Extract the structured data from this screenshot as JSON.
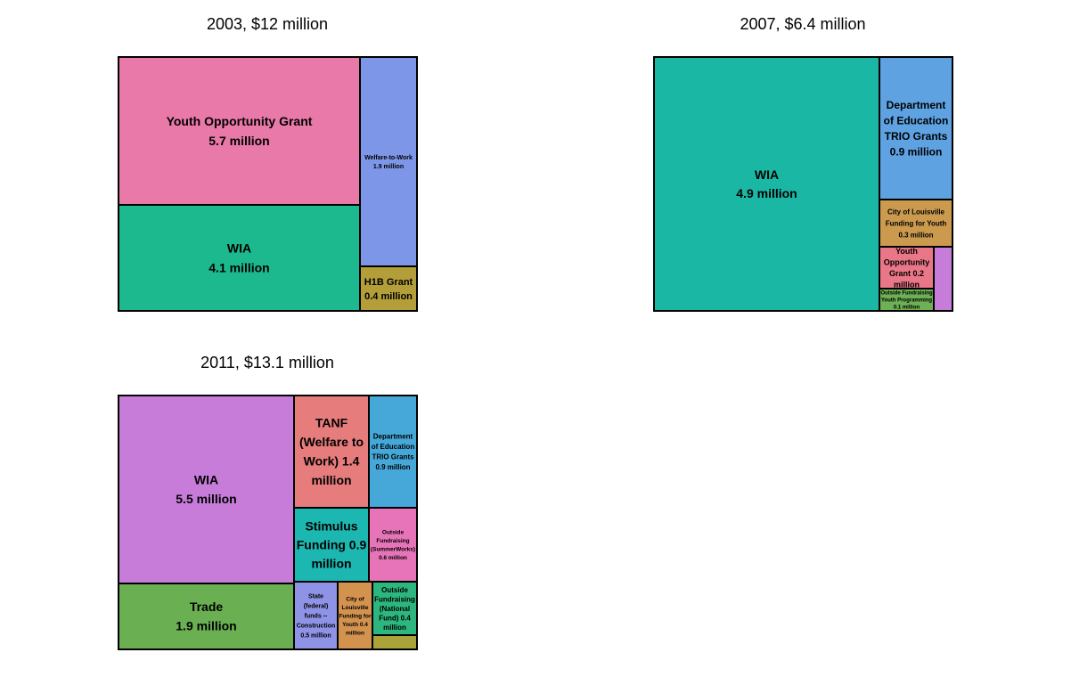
{
  "chart_data": [
    {
      "type": "treemap",
      "title": "2003, $12 million",
      "total_million": 12,
      "items": [
        {
          "name": "Youth Opportunity Grant",
          "value_million": 5.7,
          "label": [
            "Youth Opportunity Grant",
            "5.7 million"
          ],
          "color": "#E879A9"
        },
        {
          "name": "WIA",
          "value_million": 4.1,
          "label": [
            "WIA",
            "4.1 million"
          ],
          "color": "#1DB98E"
        },
        {
          "name": "Welfare-to-Work",
          "value_million": 1.9,
          "label": [
            "Welfare-to-Work",
            "1.9 million"
          ],
          "color": "#7E96E8"
        },
        {
          "name": "H1B Grant",
          "value_million": 0.4,
          "label": [
            "H1B Grant",
            "0.4 million"
          ],
          "color": "#B39E3A"
        }
      ]
    },
    {
      "type": "treemap",
      "title": "2007, $6.4 million",
      "total_million": 6.4,
      "items": [
        {
          "name": "WIA",
          "value_million": 4.9,
          "label": [
            "WIA",
            "4.9 million"
          ],
          "color": "#1AB7A4"
        },
        {
          "name": "Department of Education TRIO Grants",
          "value_million": 0.9,
          "label": [
            "Department",
            "of Education",
            "TRIO Grants",
            "0.9 million"
          ],
          "color": "#5EA2E2"
        },
        {
          "name": "City of Louisville Funding for Youth",
          "value_million": 0.3,
          "label": [
            "City of Louisville",
            "Funding for Youth",
            "0.3 million"
          ],
          "color": "#CB9A4F"
        },
        {
          "name": "Youth Opportunity Grant",
          "value_million": 0.2,
          "label": [
            "Youth",
            "Opportunity",
            "Grant 0.2",
            "million"
          ],
          "color": "#EA7788"
        },
        {
          "name": "Outside Fundraising Youth Programming",
          "value_million": 0.1,
          "label": [
            "Outside Fundraising",
            "Youth Programming",
            "0.1 million"
          ],
          "color": "#6DB055"
        },
        {
          "name": "",
          "value_million": null,
          "label": [],
          "color": "#C77CD9"
        }
      ]
    },
    {
      "type": "treemap",
      "title": "2011, $13.1 million",
      "total_million": 13.1,
      "items": [
        {
          "name": "WIA",
          "value_million": 5.5,
          "label": [
            "WIA",
            "5.5 million"
          ],
          "color": "#C77CD9"
        },
        {
          "name": "Trade",
          "value_million": 1.9,
          "label": [
            "Trade",
            "1.9 million"
          ],
          "color": "#6AAF52"
        },
        {
          "name": "TANF (Welfare to Work)",
          "value_million": 1.4,
          "label": [
            "TANF",
            "(Welfare to",
            "Work) 1.4",
            "million"
          ],
          "color": "#E67C7C"
        },
        {
          "name": "Department of Education TRIO Grants",
          "value_million": 0.9,
          "label": [
            "Department",
            "of Education",
            "TRIO Grants",
            "0.9 million"
          ],
          "color": "#46A8D8"
        },
        {
          "name": "Stimulus Funding",
          "value_million": 0.9,
          "label": [
            "Stimulus",
            "Funding 0.9",
            "million"
          ],
          "color": "#1CB7B1"
        },
        {
          "name": "Outside Fundraising (SummerWorks)",
          "value_million": 0.6,
          "label": [
            "Outside",
            "Fundraising",
            "(SummerWorks)",
            "0.6 million"
          ],
          "color": "#E774B8"
        },
        {
          "name": "State (federal) funds -- Construction",
          "value_million": 0.5,
          "label": [
            "State",
            "(federal)",
            "funds --",
            "Construction",
            "0.5 million"
          ],
          "color": "#8E93E6"
        },
        {
          "name": "City of Louisville Funding for Youth",
          "value_million": 0.4,
          "label": [
            "City of",
            "Louisville",
            "Funding for",
            "Youth 0.4",
            "million"
          ],
          "color": "#D3934F"
        },
        {
          "name": "Outside Fundraising (National Fund)",
          "value_million": 0.4,
          "label": [
            "Outside",
            "Fundraising",
            "(National",
            "Fund) 0.4",
            "million"
          ],
          "color": "#2DB77F"
        },
        {
          "name": "",
          "value_million": null,
          "label": [],
          "color": "#A9A33A"
        }
      ]
    }
  ]
}
